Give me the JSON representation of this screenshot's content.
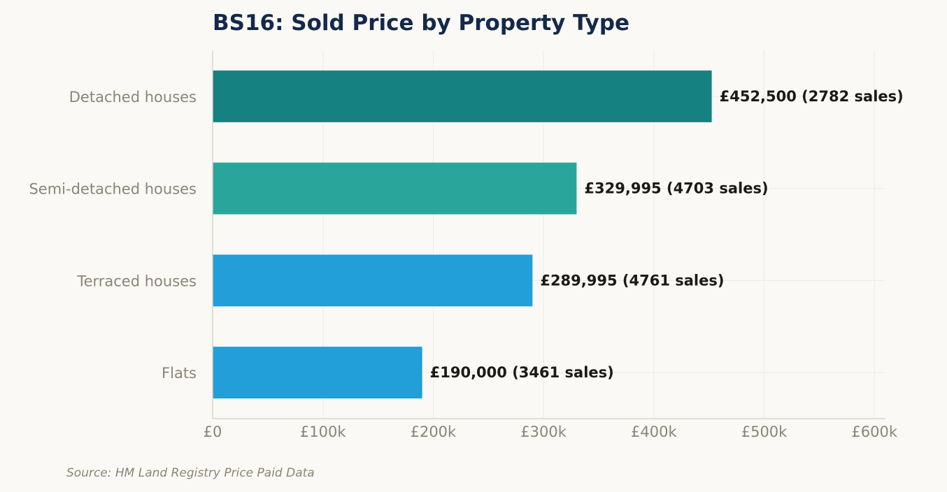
{
  "chart_data": {
    "type": "bar",
    "orientation": "horizontal",
    "title": "BS16: Sold Price by Property Type",
    "xlabel": "",
    "ylabel": "",
    "categories": [
      "Detached houses",
      "Semi-detached houses",
      "Terraced houses",
      "Flats"
    ],
    "values": [
      452500,
      329995,
      289995,
      190000
    ],
    "sales": [
      2782,
      4703,
      4761,
      3461
    ],
    "data_labels": [
      "£452,500  (2782 sales)",
      "£329,995  (4703 sales)",
      "£289,995  (4761 sales)",
      "£190,000  (3461 sales)"
    ],
    "bar_colors": [
      "#168181",
      "#2aa59b",
      "#229ed9",
      "#229ed9"
    ],
    "xlim": [
      0,
      610000
    ],
    "xticks": [
      0,
      100000,
      200000,
      300000,
      400000,
      500000,
      600000
    ],
    "xtick_labels": [
      "£0",
      "£100k",
      "£200k",
      "£300k",
      "£400k",
      "£500k",
      "£600k"
    ],
    "grid": true,
    "legend": "none",
    "source": "Source: HM Land Registry Price Paid Data"
  }
}
